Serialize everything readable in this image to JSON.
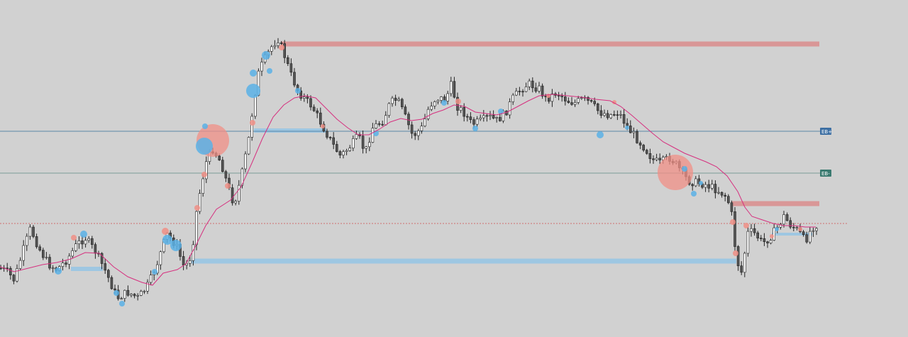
{
  "chart_data": {
    "type": "candlestick",
    "title": "",
    "xlabel": "",
    "ylabel": "",
    "grid": false,
    "ylim": [
      0,
      475
    ],
    "colors": {
      "background": "#d1d1d1",
      "bull_body": "#ffffff",
      "bear_body": "#555555",
      "wick": "#222222",
      "moving_average": "#d6307f",
      "supply_zone": "#d99797",
      "demand_zone": "#9ec7e2",
      "eq_plus_line": "#5b86a6",
      "eq_minus_line": "#7a9d98",
      "price_line": "#d05050",
      "eq_plus_tag": "#3d6fa3",
      "eq_minus_tag": "#3b7a70",
      "bubble_blue": "#5ab1e6",
      "bubble_red": "#f08f86"
    },
    "path_anchors": [
      [
        0,
        378
      ],
      [
        10,
        383
      ],
      [
        20,
        395
      ],
      [
        32,
        355
      ],
      [
        43,
        322
      ],
      [
        55,
        350
      ],
      [
        68,
        372
      ],
      [
        80,
        380
      ],
      [
        95,
        365
      ],
      [
        108,
        345
      ],
      [
        120,
        335
      ],
      [
        135,
        355
      ],
      [
        150,
        385
      ],
      [
        165,
        420
      ],
      [
        180,
        412
      ],
      [
        195,
        420
      ],
      [
        210,
        400
      ],
      [
        222,
        370
      ],
      [
        235,
        330
      ],
      [
        248,
        345
      ],
      [
        260,
        378
      ],
      [
        270,
        360
      ],
      [
        278,
        290
      ],
      [
        290,
        230
      ],
      [
        300,
        210
      ],
      [
        312,
        230
      ],
      [
        322,
        265
      ],
      [
        330,
        288
      ],
      [
        340,
        250
      ],
      [
        350,
        200
      ],
      [
        358,
        140
      ],
      [
        365,
        100
      ],
      [
        375,
        80
      ],
      [
        385,
        62
      ],
      [
        392,
        55
      ],
      [
        400,
        75
      ],
      [
        410,
        105
      ],
      [
        420,
        128
      ],
      [
        430,
        140
      ],
      [
        440,
        150
      ],
      [
        455,
        178
      ],
      [
        470,
        205
      ],
      [
        480,
        220
      ],
      [
        495,
        205
      ],
      [
        505,
        192
      ],
      [
        515,
        215
      ],
      [
        525,
        180
      ],
      [
        540,
        170
      ],
      [
        550,
        145
      ],
      [
        560,
        140
      ],
      [
        570,
        162
      ],
      [
        582,
        192
      ],
      [
        595,
        180
      ],
      [
        605,
        150
      ],
      [
        615,
        138
      ],
      [
        628,
        140
      ],
      [
        636,
        120
      ],
      [
        645,
        150
      ],
      [
        655,
        160
      ],
      [
        665,
        175
      ],
      [
        675,
        172
      ],
      [
        690,
        165
      ],
      [
        700,
        170
      ],
      [
        712,
        160
      ],
      [
        722,
        140
      ],
      [
        735,
        125
      ],
      [
        745,
        118
      ],
      [
        760,
        125
      ],
      [
        770,
        140
      ],
      [
        785,
        130
      ],
      [
        800,
        142
      ],
      [
        810,
        145
      ],
      [
        822,
        140
      ],
      [
        832,
        145
      ],
      [
        845,
        158
      ],
      [
        860,
        162
      ],
      [
        872,
        158
      ],
      [
        885,
        180
      ],
      [
        900,
        198
      ],
      [
        910,
        210
      ],
      [
        920,
        225
      ],
      [
        930,
        230
      ],
      [
        945,
        222
      ],
      [
        958,
        238
      ],
      [
        970,
        255
      ],
      [
        985,
        258
      ],
      [
        995,
        260
      ],
      [
        1005,
        265
      ],
      [
        1015,
        270
      ],
      [
        1025,
        278
      ],
      [
        1032,
        305
      ],
      [
        1038,
        365
      ],
      [
        1045,
        385
      ],
      [
        1055,
        325
      ],
      [
        1065,
        330
      ],
      [
        1075,
        343
      ],
      [
        1085,
        335
      ],
      [
        1095,
        322
      ],
      [
        1105,
        305
      ],
      [
        1115,
        318
      ],
      [
        1125,
        325
      ],
      [
        1135,
        340
      ],
      [
        1145,
        320
      ],
      [
        1155,
        315
      ]
    ],
    "moving_average_points": [
      [
        0,
        376
      ],
      [
        20,
        383
      ],
      [
        40,
        378
      ],
      [
        60,
        373
      ],
      [
        80,
        370
      ],
      [
        100,
        365
      ],
      [
        120,
        356
      ],
      [
        140,
        357
      ],
      [
        160,
        376
      ],
      [
        180,
        390
      ],
      [
        200,
        398
      ],
      [
        215,
        402
      ],
      [
        230,
        385
      ],
      [
        250,
        380
      ],
      [
        262,
        372
      ],
      [
        275,
        348
      ],
      [
        290,
        318
      ],
      [
        305,
        295
      ],
      [
        325,
        282
      ],
      [
        340,
        263
      ],
      [
        355,
        230
      ],
      [
        370,
        195
      ],
      [
        385,
        165
      ],
      [
        400,
        148
      ],
      [
        415,
        138
      ],
      [
        430,
        135
      ],
      [
        445,
        138
      ],
      [
        460,
        153
      ],
      [
        475,
        168
      ],
      [
        490,
        180
      ],
      [
        505,
        190
      ],
      [
        520,
        190
      ],
      [
        535,
        182
      ],
      [
        550,
        172
      ],
      [
        565,
        167
      ],
      [
        580,
        170
      ],
      [
        595,
        168
      ],
      [
        610,
        160
      ],
      [
        625,
        155
      ],
      [
        640,
        148
      ],
      [
        655,
        150
      ],
      [
        670,
        158
      ],
      [
        685,
        160
      ],
      [
        700,
        162
      ],
      [
        715,
        158
      ],
      [
        730,
        150
      ],
      [
        745,
        142
      ],
      [
        760,
        135
      ],
      [
        780,
        133
      ],
      [
        800,
        135
      ],
      [
        820,
        137
      ],
      [
        840,
        140
      ],
      [
        860,
        142
      ],
      [
        875,
        150
      ],
      [
        890,
        162
      ],
      [
        905,
        175
      ],
      [
        920,
        188
      ],
      [
        935,
        200
      ],
      [
        950,
        208
      ],
      [
        965,
        216
      ],
      [
        980,
        222
      ],
      [
        995,
        228
      ],
      [
        1010,
        235
      ],
      [
        1025,
        248
      ],
      [
        1040,
        270
      ],
      [
        1050,
        292
      ],
      [
        1060,
        305
      ],
      [
        1075,
        310
      ],
      [
        1090,
        315
      ],
      [
        1105,
        318
      ],
      [
        1120,
        318
      ],
      [
        1135,
        320
      ],
      [
        1150,
        320
      ]
    ],
    "zones": [
      {
        "kind": "supply",
        "x1": 396,
        "x2": 1155,
        "y": 62,
        "thickness": 7
      },
      {
        "kind": "demand",
        "x1": 358,
        "x2": 460,
        "y": 184,
        "thickness": 6
      },
      {
        "kind": "demand",
        "x1": 100,
        "x2": 145,
        "y": 379,
        "thickness": 6
      },
      {
        "kind": "demand",
        "x1": 270,
        "x2": 1038,
        "y": 368,
        "thickness": 7
      },
      {
        "kind": "supply",
        "x1": 1032,
        "x2": 1155,
        "y": 287,
        "thickness": 7
      },
      {
        "kind": "demand",
        "x1": 1088,
        "x2": 1145,
        "y": 330,
        "thickness": 4
      }
    ],
    "horizontal_lines": [
      {
        "name": "EB+",
        "y": 185,
        "color": "#5b86a6"
      },
      {
        "name": "EB-",
        "y": 244,
        "color": "#7a9d98"
      }
    ],
    "price_line_y": 315,
    "bubbles": [
      {
        "x": 300,
        "y": 198,
        "r": 23,
        "color": "red"
      },
      {
        "x": 952,
        "y": 243,
        "r": 25,
        "color": "red"
      },
      {
        "x": 288,
        "y": 206,
        "r": 12,
        "color": "blue"
      },
      {
        "x": 357,
        "y": 128,
        "r": 10,
        "color": "blue"
      },
      {
        "x": 248,
        "y": 346,
        "r": 8,
        "color": "blue"
      },
      {
        "x": 236,
        "y": 338,
        "r": 7,
        "color": "blue"
      },
      {
        "x": 375,
        "y": 78,
        "r": 6,
        "color": "blue"
      },
      {
        "x": 357,
        "y": 103,
        "r": 5,
        "color": "blue"
      },
      {
        "x": 380,
        "y": 100,
        "r": 4,
        "color": "blue"
      },
      {
        "x": 118,
        "y": 330,
        "r": 5,
        "color": "blue"
      },
      {
        "x": 82,
        "y": 382,
        "r": 5,
        "color": "blue"
      },
      {
        "x": 164,
        "y": 413,
        "r": 4,
        "color": "blue"
      },
      {
        "x": 172,
        "y": 428,
        "r": 4,
        "color": "blue"
      },
      {
        "x": 218,
        "y": 383,
        "r": 4,
        "color": "blue"
      },
      {
        "x": 289,
        "y": 178,
        "r": 4,
        "color": "blue"
      },
      {
        "x": 420,
        "y": 128,
        "r": 4,
        "color": "blue"
      },
      {
        "x": 530,
        "y": 188,
        "r": 4,
        "color": "blue"
      },
      {
        "x": 626,
        "y": 145,
        "r": 4,
        "color": "blue"
      },
      {
        "x": 670,
        "y": 181,
        "r": 4,
        "color": "blue"
      },
      {
        "x": 706,
        "y": 157,
        "r": 4,
        "color": "blue"
      },
      {
        "x": 846,
        "y": 190,
        "r": 5,
        "color": "blue"
      },
      {
        "x": 884,
        "y": 180,
        "r": 3,
        "color": "blue"
      },
      {
        "x": 965,
        "y": 238,
        "r": 4,
        "color": "blue"
      },
      {
        "x": 978,
        "y": 273,
        "r": 4,
        "color": "blue"
      },
      {
        "x": 988,
        "y": 258,
        "r": 3,
        "color": "blue"
      },
      {
        "x": 1095,
        "y": 323,
        "r": 3,
        "color": "blue"
      },
      {
        "x": 104,
        "y": 335,
        "r": 4,
        "color": "red"
      },
      {
        "x": 233,
        "y": 326,
        "r": 5,
        "color": "red"
      },
      {
        "x": 278,
        "y": 293,
        "r": 4,
        "color": "red"
      },
      {
        "x": 288,
        "y": 246,
        "r": 4,
        "color": "red"
      },
      {
        "x": 321,
        "y": 262,
        "r": 4,
        "color": "red"
      },
      {
        "x": 356,
        "y": 173,
        "r": 4,
        "color": "red"
      },
      {
        "x": 397,
        "y": 67,
        "r": 4,
        "color": "red"
      },
      {
        "x": 455,
        "y": 178,
        "r": 3,
        "color": "red"
      },
      {
        "x": 646,
        "y": 143,
        "r": 4,
        "color": "red"
      },
      {
        "x": 773,
        "y": 135,
        "r": 3,
        "color": "red"
      },
      {
        "x": 866,
        "y": 144,
        "r": 3,
        "color": "red"
      },
      {
        "x": 1033,
        "y": 313,
        "r": 4,
        "color": "red"
      },
      {
        "x": 1037,
        "y": 357,
        "r": 4,
        "color": "red"
      },
      {
        "x": 1052,
        "y": 318,
        "r": 4,
        "color": "red"
      },
      {
        "x": 1088,
        "y": 333,
        "r": 3,
        "color": "red"
      },
      {
        "x": 1128,
        "y": 323,
        "r": 3,
        "color": "red"
      }
    ],
    "candle_spacing": 4.6,
    "candle_width": 3
  }
}
